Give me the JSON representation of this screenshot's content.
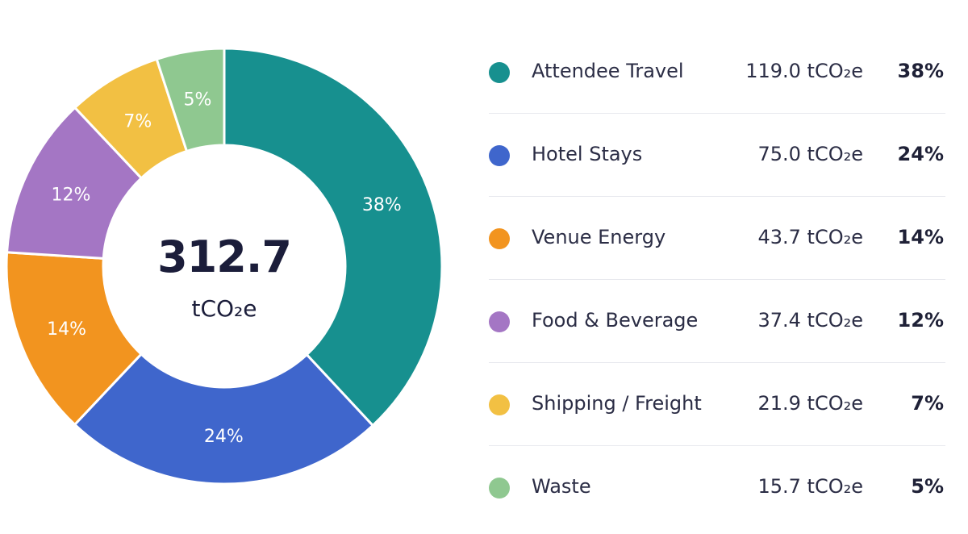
{
  "chart_data": {
    "type": "pie",
    "total": "312.7",
    "unit": "tCO₂e",
    "categories": [
      "Attendee Travel",
      "Hotel Stays",
      "Venue Energy",
      "Food & Beverage",
      "Shipping / Freight",
      "Waste"
    ],
    "values": [
      119.0,
      75.0,
      43.7,
      37.4,
      21.9,
      15.7
    ],
    "value_labels": [
      "119.0 tCO₂e",
      "75.0 tCO₂e",
      "43.7 tCO₂e",
      "37.4 tCO₂e",
      "21.9 tCO₂e",
      "15.7 tCO₂e"
    ],
    "percent_labels": [
      "38%",
      "24%",
      "14%",
      "12%",
      "7%",
      "5%"
    ],
    "colors": [
      "#17908f",
      "#3f66cc",
      "#f2941f",
      "#a476c4",
      "#f2c043",
      "#8fc890"
    ],
    "legend_position": "right"
  }
}
